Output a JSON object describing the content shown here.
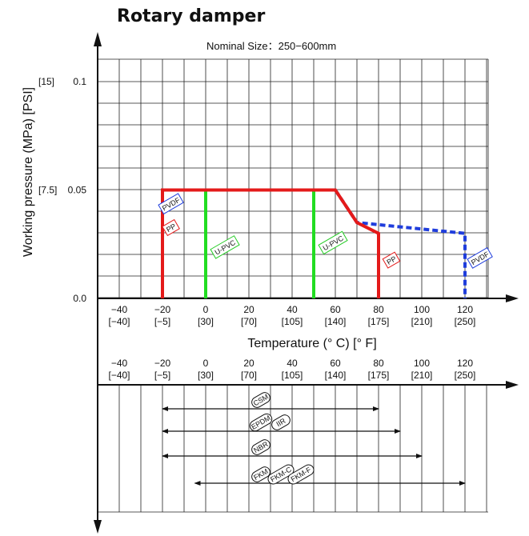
{
  "title": "Rotary damper",
  "chart_data": [
    {
      "type": "line",
      "title": "Nominal Size：250−600mm",
      "xlabel": "Temperature (° C) [° F]",
      "ylabel": "Working pressure (MPa) [PSI]",
      "xlim": [
        -50,
        140
      ],
      "ylim": [
        0,
        0.12
      ],
      "x_ticks": [
        -40,
        -20,
        0,
        20,
        40,
        60,
        80,
        100,
        120
      ],
      "x_ticks_f": [
        "[−40]",
        "[−5]",
        "[30]",
        "[70]",
        "[105]",
        "[140]",
        "[175]",
        "[210]",
        "[250]"
      ],
      "x_tick_labels": [
        "−40",
        "−20",
        "0",
        "20",
        "40",
        "60",
        "80",
        "100",
        "120"
      ],
      "y_ticks": [
        {
          "value": 0,
          "label": "0.0",
          "psi": ""
        },
        {
          "value": 0.05,
          "label": "0.05",
          "psi": "[7.5]"
        },
        {
          "value": 0.1,
          "label": "0.1",
          "psi": "[15]"
        }
      ],
      "grid": true,
      "series": [
        {
          "name": "PVDF",
          "color": "#1f3ddc",
          "dash": true,
          "x": [
            -20,
            -20,
            60,
            70,
            120,
            120
          ],
          "y": [
            0,
            0.05,
            0.05,
            0.035,
            0.03,
            0
          ]
        },
        {
          "name": "PP",
          "color": "#e41a1a",
          "dash": false,
          "x": [
            -20,
            -20,
            60,
            70,
            80,
            80
          ],
          "y": [
            0,
            0.05,
            0.05,
            0.035,
            0.03,
            0
          ]
        },
        {
          "name": "U-PVC",
          "color": "#22dd22",
          "dash": false,
          "x": [
            0,
            0,
            50,
            50
          ],
          "y": [
            0,
            0.05,
            0.05,
            0
          ]
        }
      ],
      "labels": [
        {
          "text": "PVDF",
          "x": -16,
          "y": 0.0435,
          "color": "#1f3ddc"
        },
        {
          "text": "PP",
          "x": -16,
          "y": 0.0325,
          "color": "#e41a1a"
        },
        {
          "text": "U-PVC",
          "x": 9,
          "y": 0.0235,
          "color": "#22cc22"
        },
        {
          "text": "U-PVC",
          "x": 59,
          "y": 0.0255,
          "color": "#22cc22"
        },
        {
          "text": "PP",
          "x": 86,
          "y": 0.0175,
          "color": "#e41a1a"
        },
        {
          "text": "PVDF",
          "x": 127,
          "y": 0.0185,
          "color": "#1f3ddc"
        }
      ]
    },
    {
      "type": "range",
      "x_ticks": [
        -40,
        -20,
        0,
        20,
        40,
        60,
        80,
        100,
        120
      ],
      "ranges": [
        {
          "labels": [
            "CSM"
          ],
          "from": -20,
          "to": 80
        },
        {
          "labels": [
            "EPDM",
            "IIR"
          ],
          "from": -20,
          "to": 90
        },
        {
          "labels": [
            "NBR"
          ],
          "from": -20,
          "to": 100
        },
        {
          "labels": [
            "FKM",
            "FKM-C",
            "FKM-F"
          ],
          "from": -5,
          "to": 120
        }
      ]
    }
  ]
}
